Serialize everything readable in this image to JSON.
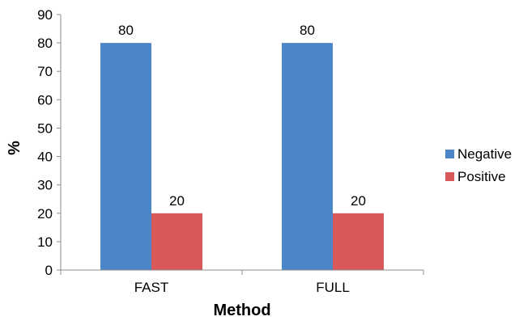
{
  "chart_data": {
    "type": "bar",
    "categories": [
      "FAST",
      "FULL"
    ],
    "series": [
      {
        "name": "Negative",
        "values": [
          80,
          80
        ],
        "color": "#4a86c8"
      },
      {
        "name": "Positive",
        "values": [
          20,
          20
        ],
        "color": "#d9595a"
      }
    ],
    "title": "",
    "xlabel": "Method",
    "ylabel": "%",
    "ylim": [
      0,
      90
    ],
    "yticks": [
      0,
      10,
      20,
      30,
      40,
      50,
      60,
      70,
      80,
      90
    ],
    "grid": false,
    "legend_position": "right",
    "data_labels": true
  }
}
